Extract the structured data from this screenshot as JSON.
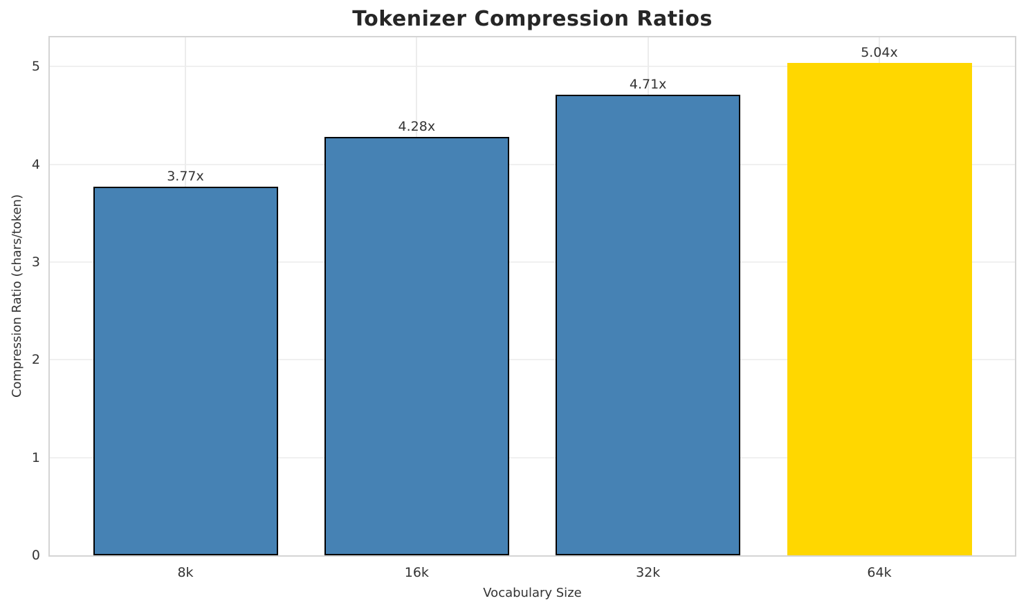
{
  "chart_data": {
    "type": "bar",
    "title": "Tokenizer Compression Ratios",
    "xlabel": "Vocabulary Size",
    "ylabel": "Compression Ratio (chars/token)",
    "categories": [
      "8k",
      "16k",
      "32k",
      "64k"
    ],
    "values": [
      3.77,
      4.28,
      4.71,
      5.04
    ],
    "bar_labels": [
      "3.77x",
      "4.28x",
      "4.71x",
      "5.04x"
    ],
    "bar_colors": [
      "#4682B4",
      "#4682B4",
      "#4682B4",
      "#FFD700"
    ],
    "bar_edge_colors": [
      "#000000",
      "#000000",
      "#000000",
      "#FFD700"
    ],
    "highlight_index": 3,
    "ylim": [
      0,
      5.3
    ],
    "yticks": [
      0,
      1,
      2,
      3,
      4,
      5
    ],
    "grid": "both",
    "legend": "none",
    "style": {
      "grid_color_h": "#f0f0f0",
      "grid_color_v": "#ececec",
      "spine_color": "#d4d4d4",
      "title_color": "#262626",
      "text_color": "#333333",
      "background": "#ffffff"
    }
  }
}
